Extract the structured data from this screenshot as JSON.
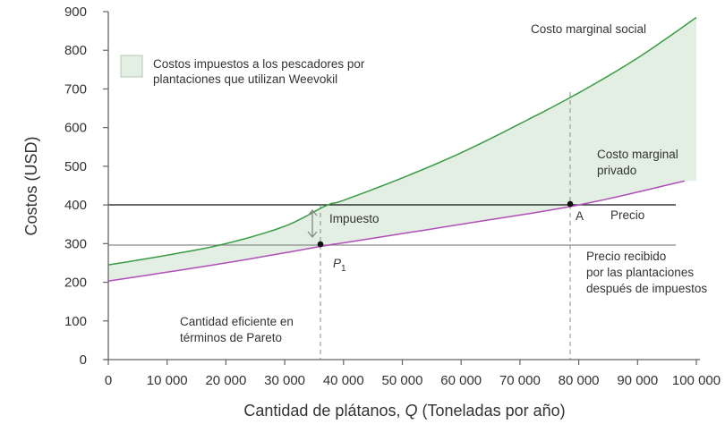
{
  "chart_data": {
    "type": "line",
    "title": "",
    "xlabel": "Cantidad de plátanos, Q (Toneladas por año)",
    "xlabel_parts": {
      "pre": "Cantidad de plátanos, ",
      "var": "Q",
      "post": " (Toneladas por año)"
    },
    "ylabel": "Costos (USD)",
    "xlim": [
      0,
      100000
    ],
    "ylim": [
      0,
      900
    ],
    "x_ticks": [
      0,
      10000,
      20000,
      30000,
      40000,
      50000,
      60000,
      70000,
      80000,
      90000,
      100000
    ],
    "x_tick_labels": [
      "0",
      "10 000",
      "20 000",
      "30 000",
      "40 000",
      "50 000",
      "60 000",
      "70 000",
      "80 000",
      "90 000",
      "100 000"
    ],
    "y_ticks": [
      0,
      100,
      200,
      300,
      400,
      500,
      600,
      700,
      800,
      900
    ],
    "y_tick_labels": [
      "0",
      "100",
      "200",
      "300",
      "400",
      "500",
      "600",
      "700",
      "800",
      "900"
    ],
    "grid": false,
    "series": [
      {
        "name": "Costo marginal social",
        "color": "#3a9a45",
        "x": [
          0,
          10000,
          20000,
          30000,
          37000,
          40000,
          50000,
          60000,
          70000,
          80000,
          90000,
          100000
        ],
        "values": [
          245,
          270,
          300,
          345,
          398,
          412,
          470,
          535,
          610,
          690,
          780,
          885
        ]
      },
      {
        "name": "Costo marginal privado",
        "color": "#b04fb8",
        "x": [
          0,
          20000,
          37000,
          40000,
          60000,
          80000,
          98000
        ],
        "values": [
          203,
          250,
          295,
          302,
          350,
          400,
          462
        ]
      },
      {
        "name": "Precio",
        "color": "#111111",
        "x": [
          0,
          98000
        ],
        "values": [
          400,
          400
        ]
      },
      {
        "name": "Precio recibido por las plantaciones después de impuestos",
        "color": "#888888",
        "x": [
          0,
          98000
        ],
        "values": [
          295,
          295
        ]
      }
    ],
    "shaded_region": {
      "label": "Costos impuestos a los pescadores por plantaciones que utilizan Weevokil",
      "between": [
        "Costo marginal social",
        "Costo marginal privado"
      ],
      "color": "#e2efe2"
    },
    "points": [
      {
        "label": "P1",
        "x": 37000,
        "y": 295
      },
      {
        "label": "A",
        "x": 80000,
        "y": 400
      }
    ],
    "vertical_dashed_lines": [
      37000,
      80000
    ],
    "annotations": [
      {
        "text": "Costo marginal social"
      },
      {
        "text": "Costo marginal privado"
      },
      {
        "text": "Impuesto"
      },
      {
        "text": "Precio"
      },
      {
        "text": "Precio recibido por las plantaciones después de impuestos"
      },
      {
        "text": "Cantidad eficiente en términos de Pareto"
      },
      {
        "text": "A"
      },
      {
        "text": "P1"
      }
    ],
    "legend_position": "upper-left"
  },
  "labels": {
    "legend_line1": "Costos impuestos a los pescadores por",
    "legend_line2": "plantaciones que utilizan Weevokil",
    "social_mc": "Costo marginal social",
    "private_mc_line1": "Costo marginal",
    "private_mc_line2": "privado",
    "tax": "Impuesto",
    "price": "Precio",
    "point_a": "A",
    "point_p": "P",
    "point_p_sub": "1",
    "after_tax_line1": "Precio recibido",
    "after_tax_line2": "por las plantaciones",
    "after_tax_line3": "después de impuestos",
    "pareto_line1": "Cantidad eficiente en",
    "pareto_line2": "términos de Pareto"
  },
  "colors": {
    "social": "#3a9a45",
    "private": "#b04fb8",
    "shade": "#e2efe2",
    "price": "#111111",
    "after_tax": "#8a8a8a",
    "axis": "#666666",
    "dashed": "#8a8a8a"
  }
}
